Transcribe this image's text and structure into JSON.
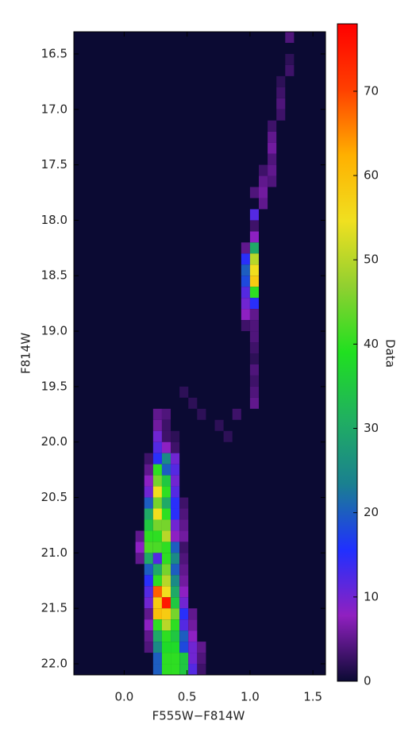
{
  "chart_data": {
    "type": "heatmap",
    "xlabel": "F555W−F814W",
    "ylabel": "F814W",
    "colorbar_label": "Data",
    "xlim": [
      -0.4,
      1.6
    ],
    "ylim": [
      22.1,
      16.3
    ],
    "xticks": [
      {
        "value": 0,
        "label": "0.0"
      },
      0.5,
      {
        "value": 1,
        "label": "1.0"
      },
      1.5
    ],
    "yticks": [
      16.5,
      {
        "value": 17,
        "label": "17.0"
      },
      17.5,
      {
        "value": 18,
        "label": "18.0"
      },
      18.5,
      {
        "value": 19,
        "label": "19.0"
      },
      19.5,
      {
        "value": 20,
        "label": "20.0"
      },
      20.5,
      {
        "value": 21,
        "label": "21.0"
      },
      21.5,
      {
        "value": 22,
        "label": "22.0"
      }
    ],
    "x_bins": [
      -0.4,
      -0.33,
      -0.26,
      -0.19,
      -0.12,
      -0.05,
      0.02,
      0.09,
      0.16,
      0.23,
      0.3,
      0.37,
      0.44,
      0.51,
      0.58,
      0.65,
      0.72,
      0.79,
      0.86,
      0.93,
      1.0,
      1.07,
      1.14,
      1.21,
      1.28,
      1.35,
      1.42,
      1.49,
      1.56
    ],
    "y_bin_edges": [
      16.3,
      22.1
    ],
    "clim": [
      0,
      78
    ],
    "cticks": [
      0,
      10,
      20,
      30,
      40,
      50,
      60,
      70
    ],
    "colormap": [
      "#0b0a33",
      "#9020c0",
      "#2030ff",
      "#1a8090",
      "#20b060",
      "#20e020",
      "#90d030",
      "#f0e020",
      "#ffb000",
      "#ff4000",
      "#ff0000"
    ],
    "x": [
      0.265,
      0.335,
      0.265,
      0.335,
      0.265,
      0.335,
      0.405,
      0.265,
      0.335,
      0.405,
      0.195,
      0.265,
      0.335,
      0.405,
      0.195,
      0.265,
      0.335,
      0.405,
      0.195,
      0.265,
      0.335,
      0.405,
      0.195,
      0.265,
      0.335,
      0.405,
      0.195,
      0.265,
      0.335,
      0.405,
      0.475,
      0.195,
      0.265,
      0.335,
      0.405,
      0.475,
      0.195,
      0.265,
      0.335,
      0.405,
      0.475,
      0.125,
      0.195,
      0.265,
      0.335,
      0.405,
      0.475,
      0.125,
      0.195,
      0.265,
      0.335,
      0.405,
      0.475,
      0.125,
      0.195,
      0.265,
      0.335,
      0.405,
      0.475,
      0.195,
      0.265,
      0.335,
      0.405,
      0.475,
      0.195,
      0.265,
      0.335,
      0.405,
      0.475,
      0.195,
      0.265,
      0.335,
      0.405,
      0.475,
      0.195,
      0.265,
      0.335,
      0.405,
      0.475,
      0.195,
      0.265,
      0.335,
      0.405,
      0.475,
      0.545,
      0.195,
      0.265,
      0.335,
      0.405,
      0.475,
      0.545,
      0.195,
      0.265,
      0.335,
      0.405,
      0.475,
      0.545,
      0.195,
      0.265,
      0.335,
      0.405,
      0.475,
      0.545,
      0.615,
      0.265,
      0.335,
      0.405,
      0.475,
      0.545,
      0.615,
      0.265,
      0.335,
      0.405,
      0.475,
      0.545,
      0.615,
      0.965,
      1.035,
      0.965,
      1.035,
      0.965,
      1.035,
      0.965,
      1.035,
      0.965,
      1.035,
      0.965,
      1.035,
      0.965,
      1.035,
      0.965,
      1.035,
      1.035,
      1.035,
      1.035,
      1.105,
      1.035,
      1.105,
      1.105,
      1.175,
      1.105,
      1.175,
      1.175,
      1.175,
      1.175,
      1.175,
      1.245,
      1.245,
      1.245,
      1.245,
      1.315,
      1.315,
      1.315,
      1.035,
      1.035,
      1.035,
      1.035,
      1.035,
      1.035,
      1.035,
      0.475,
      0.545,
      0.615,
      0.755,
      0.825,
      0.895
    ],
    "y": [
      19.75,
      19.75,
      19.85,
      19.85,
      19.95,
      19.95,
      19.95,
      20.05,
      20.05,
      20.05,
      20.15,
      20.15,
      20.15,
      20.15,
      20.25,
      20.25,
      20.25,
      20.25,
      20.35,
      20.35,
      20.35,
      20.35,
      20.45,
      20.45,
      20.45,
      20.45,
      20.55,
      20.55,
      20.55,
      20.55,
      20.55,
      20.65,
      20.65,
      20.65,
      20.65,
      20.65,
      20.75,
      20.75,
      20.75,
      20.75,
      20.75,
      20.85,
      20.85,
      20.85,
      20.85,
      20.85,
      20.85,
      20.95,
      20.95,
      20.95,
      20.95,
      20.95,
      20.95,
      21.05,
      21.05,
      21.05,
      21.05,
      21.05,
      21.05,
      21.15,
      21.15,
      21.15,
      21.15,
      21.15,
      21.25,
      21.25,
      21.25,
      21.25,
      21.25,
      21.35,
      21.35,
      21.35,
      21.35,
      21.35,
      21.45,
      21.45,
      21.45,
      21.45,
      21.45,
      21.55,
      21.55,
      21.55,
      21.55,
      21.55,
      21.55,
      21.65,
      21.65,
      21.65,
      21.65,
      21.65,
      21.65,
      21.75,
      21.75,
      21.75,
      21.75,
      21.75,
      21.75,
      21.85,
      21.85,
      21.85,
      21.85,
      21.85,
      21.85,
      21.85,
      21.95,
      21.95,
      21.95,
      21.95,
      21.95,
      21.95,
      22.05,
      22.05,
      22.05,
      22.05,
      22.05,
      22.05,
      18.25,
      18.25,
      18.35,
      18.35,
      18.45,
      18.45,
      18.55,
      18.55,
      18.65,
      18.65,
      18.75,
      18.75,
      18.85,
      18.85,
      18.95,
      18.95,
      18.15,
      18.05,
      17.95,
      17.85,
      17.75,
      17.75,
      17.65,
      17.65,
      17.55,
      17.55,
      17.45,
      17.35,
      17.25,
      17.15,
      17.05,
      16.95,
      16.85,
      16.75,
      16.65,
      16.55,
      16.35,
      19.05,
      19.15,
      19.25,
      19.35,
      19.45,
      19.55,
      19.65,
      19.55,
      19.65,
      19.75,
      19.85,
      19.95,
      19.75
    ],
    "values": [
      5,
      4,
      6,
      3,
      10,
      3,
      2,
      12,
      8,
      3,
      3,
      15,
      25,
      10,
      5,
      40,
      20,
      12,
      8,
      45,
      35,
      10,
      10,
      55,
      40,
      12,
      20,
      45,
      30,
      15,
      3,
      30,
      55,
      40,
      15,
      4,
      35,
      45,
      45,
      10,
      5,
      5,
      40,
      40,
      50,
      8,
      6,
      8,
      42,
      42,
      40,
      20,
      3,
      5,
      30,
      12,
      40,
      25,
      4,
      20,
      30,
      45,
      20,
      5,
      15,
      40,
      50,
      25,
      6,
      12,
      68,
      55,
      30,
      8,
      10,
      58,
      75,
      35,
      10,
      5,
      60,
      58,
      45,
      15,
      5,
      8,
      40,
      50,
      40,
      12,
      6,
      5,
      30,
      40,
      35,
      20,
      8,
      4,
      25,
      38,
      38,
      18,
      10,
      5,
      20,
      40,
      40,
      35,
      10,
      4,
      20,
      40,
      40,
      35,
      12,
      3,
      5,
      30,
      15,
      50,
      20,
      55,
      18,
      58,
      12,
      40,
      10,
      15,
      8,
      5,
      3,
      4,
      8,
      3,
      12,
      5,
      4,
      6,
      5,
      4,
      3,
      5,
      4,
      6,
      5,
      3,
      3,
      4,
      3,
      2,
      3,
      2,
      4,
      4,
      3,
      2,
      4,
      3,
      4,
      5,
      2,
      2,
      2,
      2,
      2,
      3
    ]
  }
}
